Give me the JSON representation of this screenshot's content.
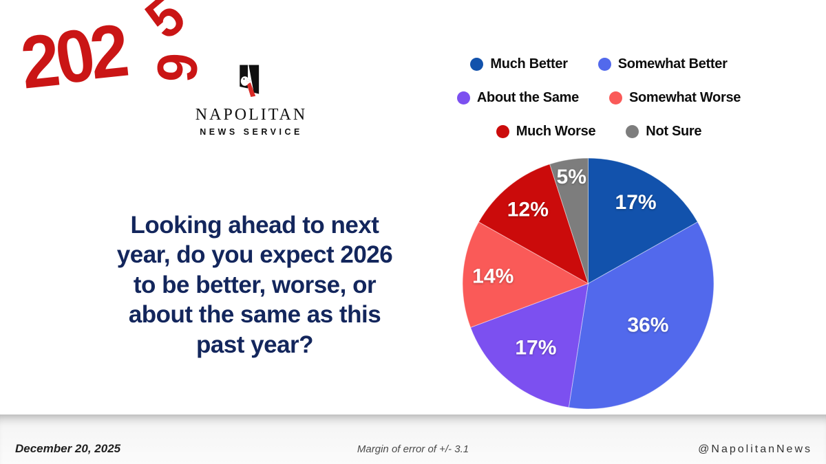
{
  "year_graphic": {
    "digits_main": [
      "2",
      "0",
      "2"
    ],
    "digit_old": "5",
    "digit_new": "6"
  },
  "logo": {
    "name": "NAPOLITAN",
    "tagline": "NEWS SERVICE"
  },
  "question": {
    "text": "Looking ahead to next year, do you expect 2026 to be better, worse, or about the same as this past year?",
    "lines": [
      "Looking ahead to next",
      "year, do you expect 2026",
      "to be better, worse, or",
      "about the same as this",
      "past year?"
    ]
  },
  "chart_data": {
    "type": "pie",
    "labels": [
      "Much Better",
      "Somewhat Better",
      "About the Same",
      "Somewhat Worse",
      "Much Worse",
      "Not Sure"
    ],
    "values": [
      17,
      36,
      17,
      14,
      12,
      5
    ],
    "unit": "%",
    "data_labels": [
      "17%",
      "36%",
      "17%",
      "14%",
      "12%",
      "5%"
    ],
    "colors": [
      "#1252AC",
      "#5269EC",
      "#7C50F0",
      "#FA5A58",
      "#CB0B0B",
      "#7D7D7D"
    ],
    "start_angle_deg": 0,
    "direction": "clockwise",
    "legend_position": "top-right",
    "legend_rows": [
      [
        0,
        1
      ],
      [
        2,
        3
      ],
      [
        4,
        5
      ]
    ]
  },
  "footer": {
    "date": "December 20, 2025",
    "margin_note": "Margin of error of +/- 3.1",
    "handle": "@NapolitanNews"
  },
  "colors": {
    "accent_red": "#CA1515",
    "question_navy": "#13265C",
    "footer_bg": "#f6f6f6"
  }
}
